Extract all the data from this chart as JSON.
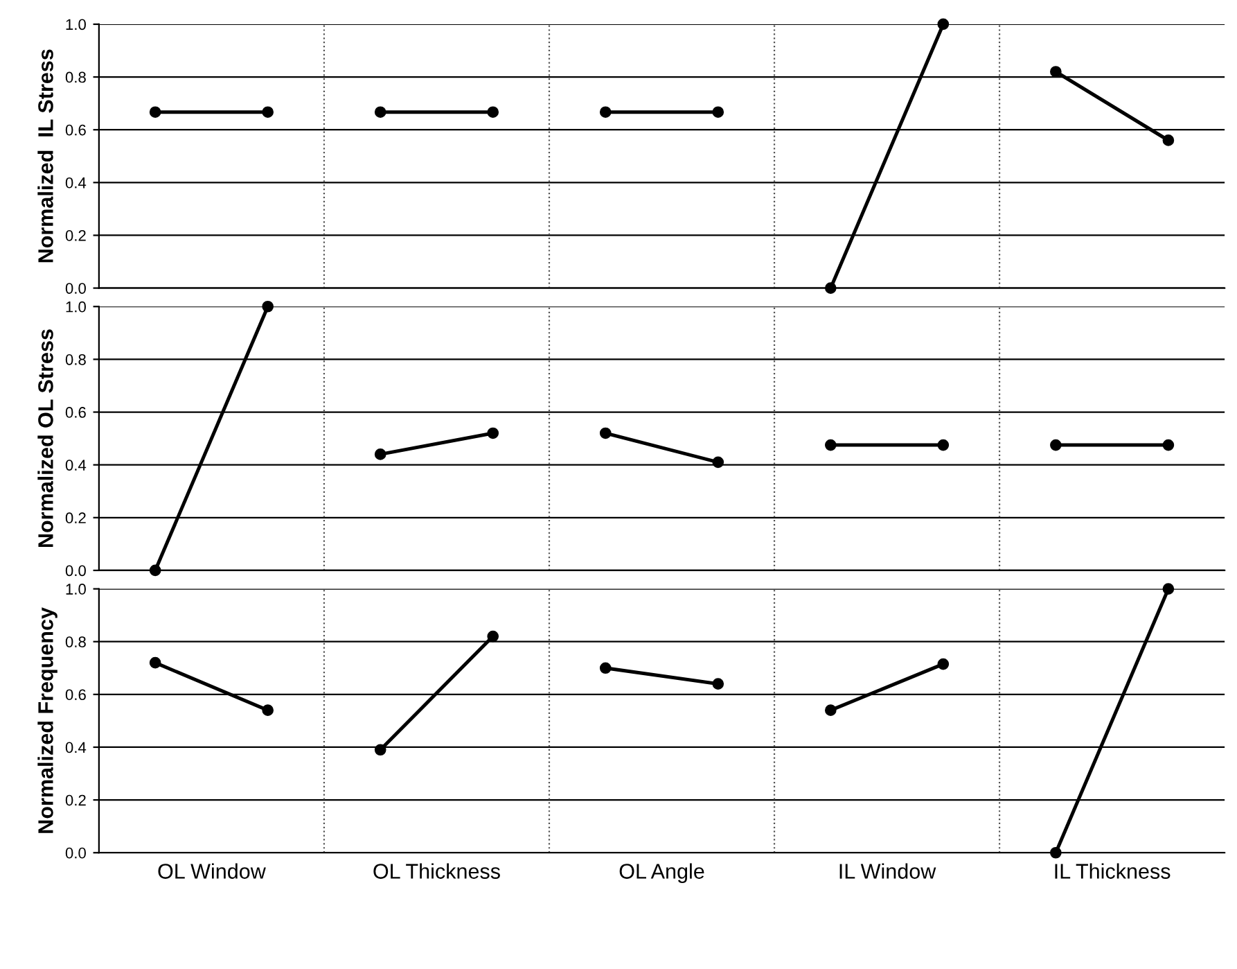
{
  "chart_data": [
    {
      "type": "line",
      "ylabel": "Normalized  IL Stress",
      "categories": [
        null,
        null,
        null,
        null,
        null,
        null,
        null,
        null,
        null,
        null
      ],
      "ylim": [
        0,
        1
      ],
      "yticks": [
        {
          "value": 0,
          "label": "0.0"
        },
        {
          "value": 0.2,
          "label": "0.2"
        },
        {
          "value": 0.4,
          "label": "0.4"
        },
        {
          "value": 0.6,
          "label": "0.6"
        },
        {
          "value": 0.8,
          "label": "0.8"
        },
        {
          "value": 1,
          "label": "1.0"
        }
      ],
      "grid": true,
      "marker": "circle",
      "line_style": "solid",
      "legend": false,
      "series": [
        {
          "color": "#000000",
          "values": [
            0.667,
            0.667,
            null,
            null,
            null,
            null,
            null,
            null,
            null,
            null
          ]
        },
        {
          "color": "#000000",
          "values": [
            null,
            null,
            0.667,
            0.667,
            null,
            null,
            null,
            null,
            null,
            null
          ]
        },
        {
          "color": "#000000",
          "values": [
            null,
            null,
            null,
            null,
            0.667,
            0.667,
            null,
            null,
            null,
            null
          ]
        },
        {
          "color": "#000000",
          "values": [
            null,
            null,
            null,
            null,
            null,
            null,
            0,
            1,
            null,
            null
          ]
        },
        {
          "color": "#000000",
          "values": [
            null,
            null,
            null,
            null,
            null,
            null,
            null,
            null,
            0.82,
            0.56
          ]
        }
      ]
    },
    {
      "type": "line",
      "ylabel": "Normalized OL Stress",
      "categories": [
        null,
        null,
        null,
        null,
        null,
        null,
        null,
        null,
        null,
        null
      ],
      "ylim": [
        0,
        1
      ],
      "yticks": [
        {
          "value": 0,
          "label": "0.0"
        },
        {
          "value": 0.2,
          "label": "0.2"
        },
        {
          "value": 0.4,
          "label": "0.4"
        },
        {
          "value": 0.6,
          "label": "0.6"
        },
        {
          "value": 0.8,
          "label": "0.8"
        },
        {
          "value": 1,
          "label": "1.0"
        }
      ],
      "grid": true,
      "marker": "circle",
      "line_style": "solid",
      "legend": false,
      "series": [
        {
          "color": "#000000",
          "values": [
            0,
            1,
            null,
            null,
            null,
            null,
            null,
            null,
            null,
            null
          ]
        },
        {
          "color": "#000000",
          "values": [
            null,
            null,
            0.44,
            0.52,
            null,
            null,
            null,
            null,
            null,
            null
          ]
        },
        {
          "color": "#000000",
          "values": [
            null,
            null,
            null,
            null,
            0.52,
            0.41,
            null,
            null,
            null,
            null
          ]
        },
        {
          "color": "#000000",
          "values": [
            null,
            null,
            null,
            null,
            null,
            null,
            0.475,
            0.475,
            null,
            null
          ]
        },
        {
          "color": "#000000",
          "values": [
            null,
            null,
            null,
            null,
            null,
            null,
            null,
            null,
            0.475,
            0.475
          ]
        }
      ]
    },
    {
      "type": "line",
      "ylabel": "Normalized Frequency",
      "categories": [
        null,
        null,
        null,
        null,
        null,
        null,
        null,
        null,
        null,
        null
      ],
      "ylim": [
        0,
        1
      ],
      "yticks": [
        {
          "value": 0,
          "label": "0.0"
        },
        {
          "value": 0.2,
          "label": "0.2"
        },
        {
          "value": 0.4,
          "label": "0.4"
        },
        {
          "value": 0.6,
          "label": "0.6"
        },
        {
          "value": 0.8,
          "label": "0.8"
        },
        {
          "value": 1,
          "label": "1.0"
        }
      ],
      "grid": true,
      "marker": "circle",
      "line_style": "solid",
      "legend": false,
      "annotations": [
        "OL Window",
        "OL Thickness",
        "OL Angle",
        "IL Window",
        "IL Thickness"
      ],
      "series": [
        {
          "color": "#000000",
          "values": [
            0.72,
            0.54,
            null,
            null,
            null,
            null,
            null,
            null,
            null,
            null
          ]
        },
        {
          "color": "#000000",
          "values": [
            null,
            null,
            0.39,
            0.82,
            null,
            null,
            null,
            null,
            null,
            null
          ]
        },
        {
          "color": "#000000",
          "values": [
            null,
            null,
            null,
            null,
            0.7,
            0.64,
            null,
            null,
            null,
            null
          ]
        },
        {
          "color": "#000000",
          "values": [
            null,
            null,
            null,
            null,
            null,
            null,
            0.54,
            0.715,
            null,
            null
          ]
        },
        {
          "color": "#000000",
          "values": [
            null,
            null,
            null,
            null,
            null,
            null,
            null,
            null,
            0,
            1
          ]
        }
      ]
    }
  ]
}
